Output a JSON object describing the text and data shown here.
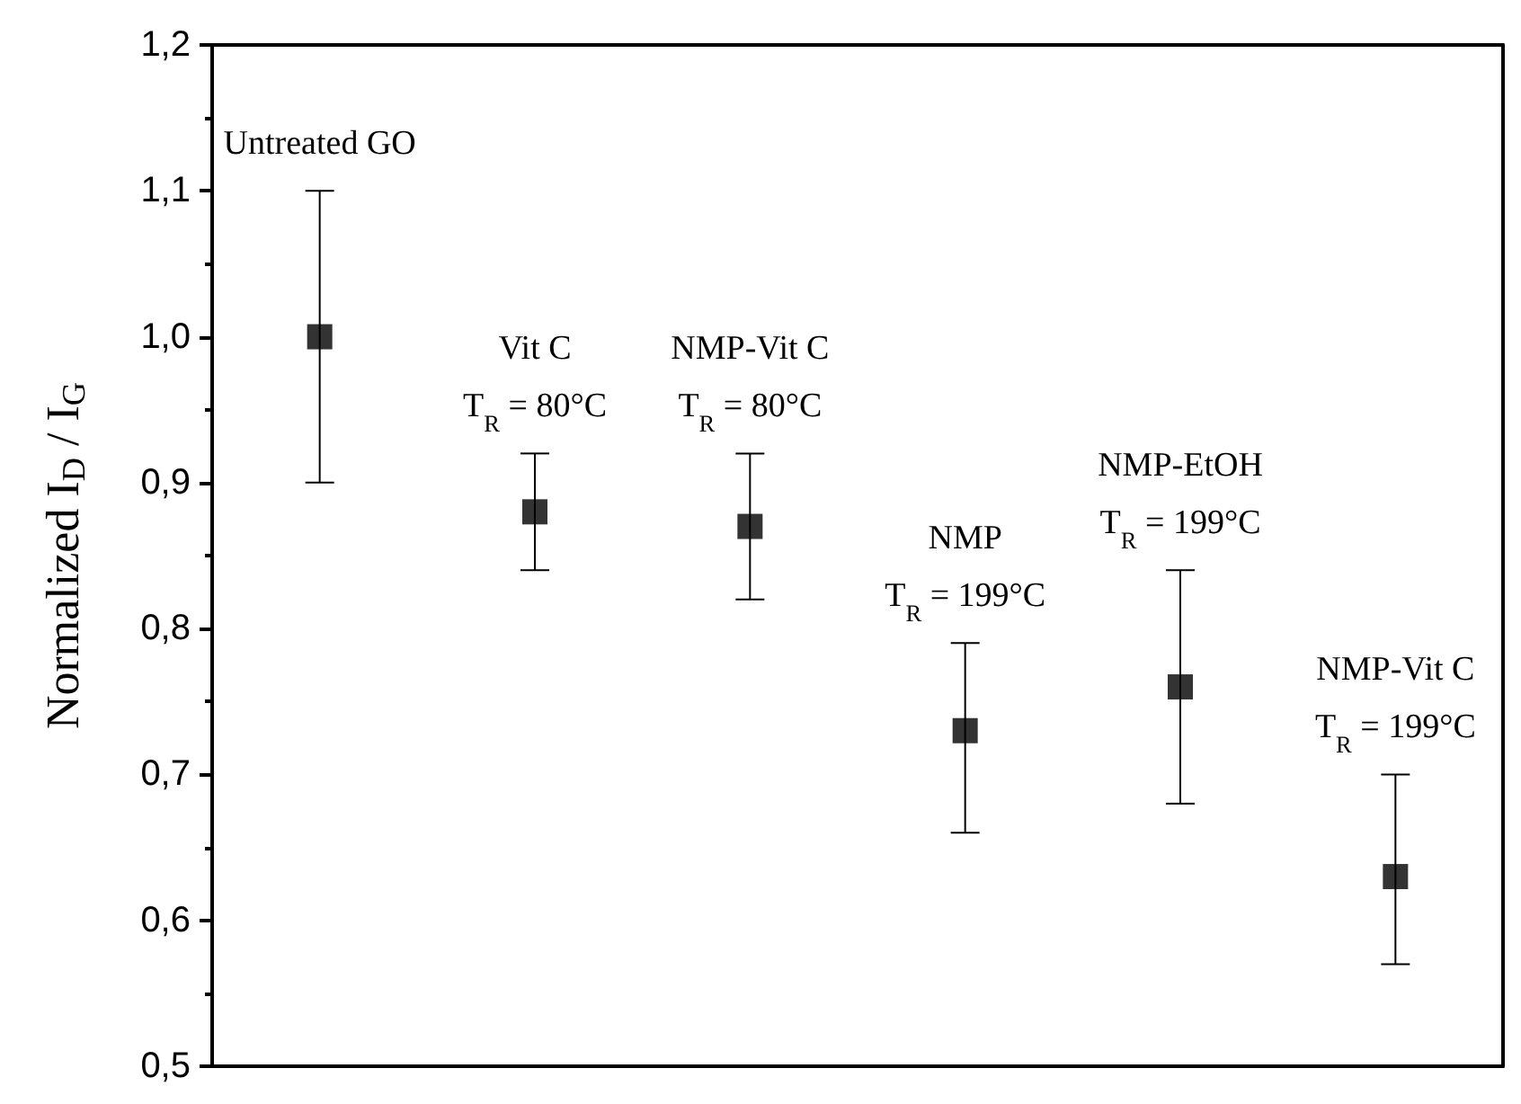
{
  "chart_data": {
    "type": "scatter",
    "ylabel": "Normalized I$_{D}$ / I$_{G}$",
    "categories": [
      "Untreated GO",
      "Vit C\nT$_{R}$ = 80°C",
      "NMP-Vit C\nT$_{R}$ = 80°C",
      "NMP\nT$_{R}$ = 199°C",
      "NMP-EtOH\nT$_{R}$ = 199°C",
      "NMP-Vit C\nT$_{R}$ = 199°C"
    ],
    "series": [
      {
        "color": "#000000",
        "values": [
          1.0,
          0.88,
          0.87,
          0.73,
          0.76,
          0.63
        ],
        "errors": [
          [
            0.9,
            1.1
          ],
          [
            0.84,
            0.92
          ],
          [
            0.82,
            0.92
          ],
          [
            0.66,
            0.79
          ],
          [
            0.68,
            0.84
          ],
          [
            0.57,
            0.7
          ]
        ]
      }
    ],
    "ylim": [
      0.5,
      1.2
    ],
    "yticks": [
      {
        "value": 0.5,
        "label": "0,5"
      },
      {
        "value": 0.6,
        "label": "0,6"
      },
      {
        "value": 0.7,
        "label": "0,7"
      },
      {
        "value": 0.8,
        "label": "0,8"
      },
      {
        "value": 0.9,
        "label": "0,9"
      },
      {
        "value": 1.0,
        "label": "1,0"
      },
      {
        "value": 1.1,
        "label": "1,1"
      },
      {
        "value": 1.2,
        "label": "1,2"
      }
    ],
    "tick_labels": "y",
    "marker": "square"
  }
}
